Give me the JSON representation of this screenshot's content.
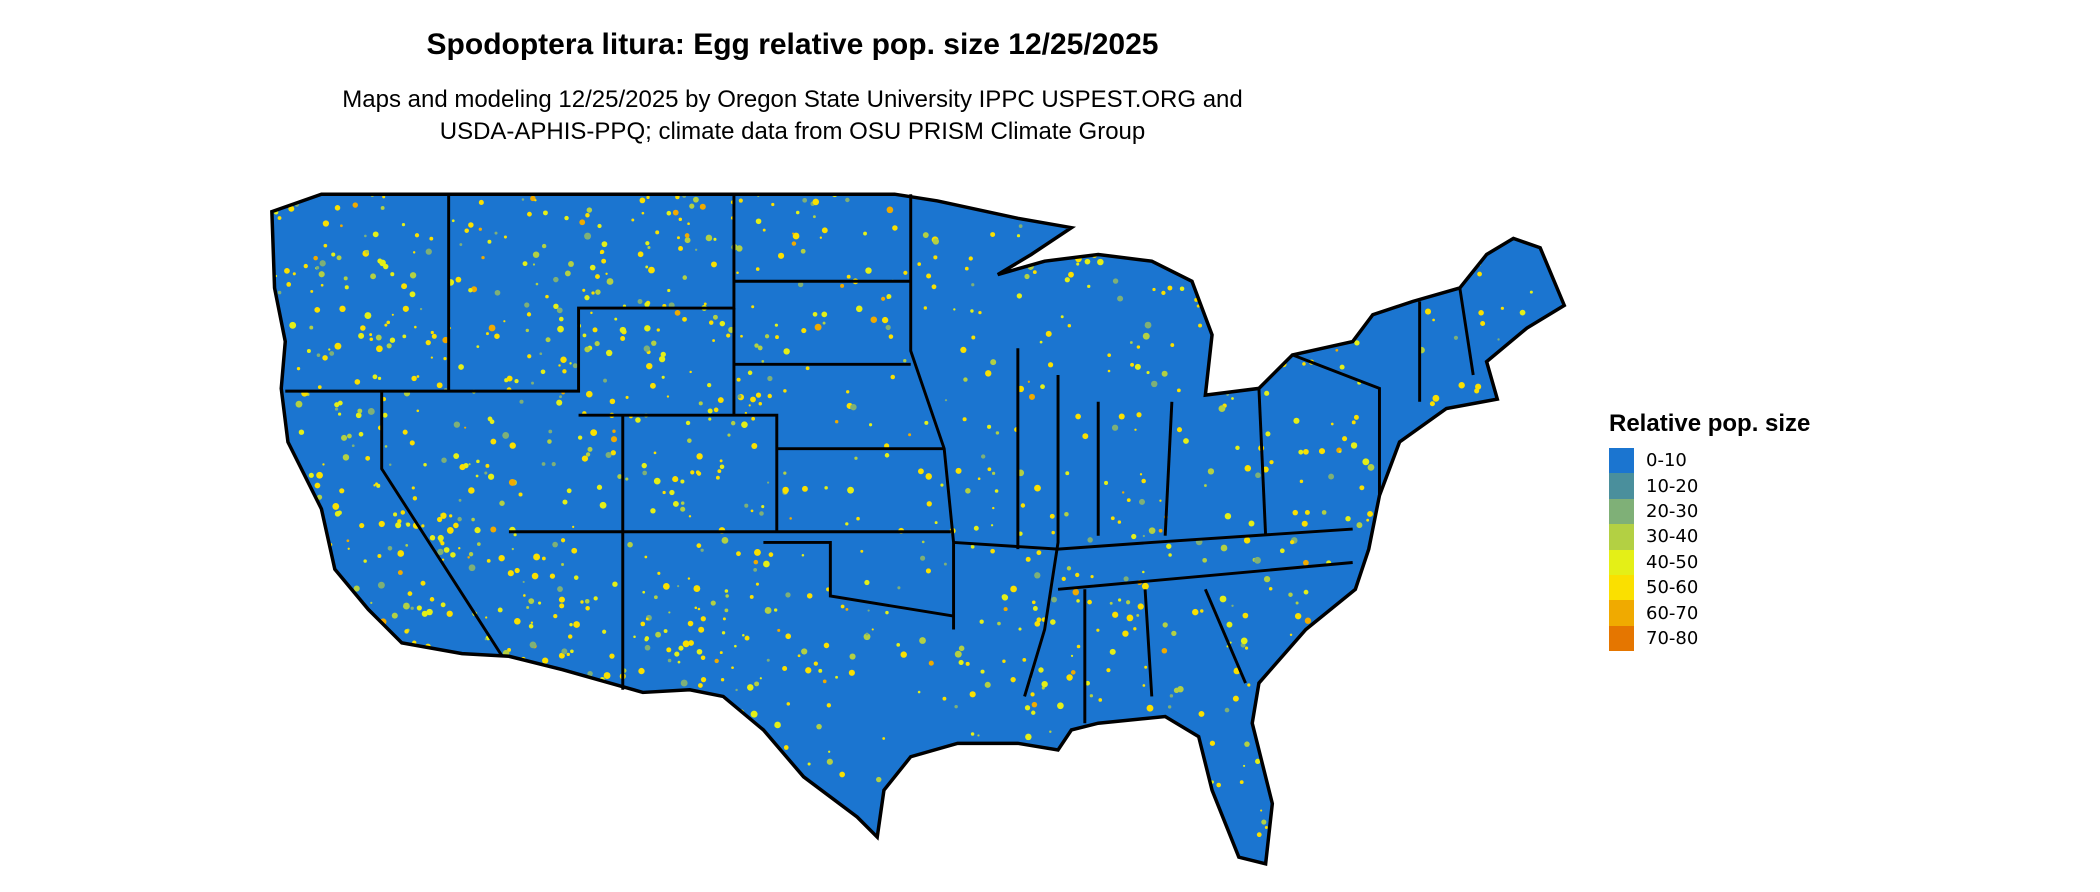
{
  "title": "Spodoptera litura: Egg relative pop. size 12/25/2025",
  "subtitle_lines": [
    "Maps and modeling 12/25/2025 by Oregon State University IPPC USPEST.ORG and",
    "USDA-APHIS-PPQ; climate data from OSU PRISM Climate Group"
  ],
  "legend": {
    "title": "Relative pop. size",
    "items": [
      {
        "label": "0-10",
        "color": "#1b75d0"
      },
      {
        "label": "10-20",
        "color": "#4a8f9c"
      },
      {
        "label": "20-30",
        "color": "#7fb077"
      },
      {
        "label": "30-40",
        "color": "#b3d043"
      },
      {
        "label": "40-50",
        "color": "#e4ef17"
      },
      {
        "label": "50-60",
        "color": "#fae000"
      },
      {
        "label": "60-70",
        "color": "#f0aa00"
      },
      {
        "label": "70-80",
        "color": "#e57600"
      }
    ]
  },
  "map": {
    "region": "Contiguous United States",
    "dominant_class": "0-10",
    "border_color": "#000000"
  }
}
